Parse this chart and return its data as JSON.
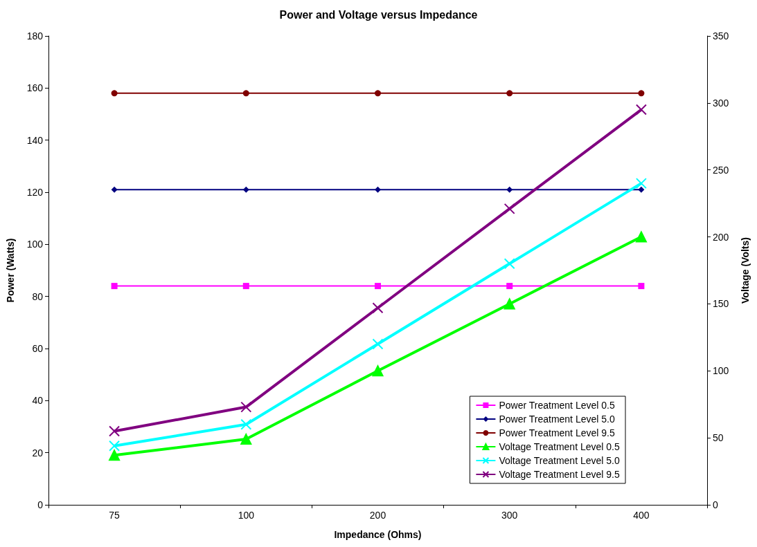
{
  "chart_data": {
    "type": "line",
    "title": "Power and Voltage versus Impedance",
    "xlabel": "Impedance (Ohms)",
    "ylabel": "Power (Watts)",
    "y2label": "Voltage (Volts)",
    "categories": [
      "75",
      "100",
      "200",
      "300",
      "400"
    ],
    "ylim": [
      0,
      180
    ],
    "yticks": [
      0,
      20,
      40,
      60,
      80,
      100,
      120,
      140,
      160,
      180
    ],
    "y2lim": [
      0,
      350
    ],
    "y2ticks": [
      0,
      50,
      100,
      150,
      200,
      250,
      300,
      350
    ],
    "grid": false,
    "legend": "bottom right",
    "line_style": "solid",
    "series": [
      {
        "name": "Power Treatment Level 0.5",
        "color": "#ff00ff",
        "marker": "square",
        "values": [
          84,
          84,
          84,
          84,
          84
        ]
      },
      {
        "name": "Power Treatment Level 5.0",
        "color": "#000080",
        "marker": "diamond",
        "values": [
          121,
          121,
          121,
          121,
          121
        ]
      },
      {
        "name": "Power Treatment Level 9.5",
        "color": "#800000",
        "marker": "circle",
        "values": [
          158,
          158,
          158,
          158,
          158
        ]
      },
      {
        "name": "Voltage Treatment Level 0.5",
        "color": "#00ff00",
        "marker": "triangle",
        "axis": "y2",
        "values": [
          37,
          49,
          100,
          150,
          200
        ]
      },
      {
        "name": "Voltage Treatment Level 5.0",
        "color": "#00ffff",
        "marker": "cross",
        "axis": "y2",
        "values": [
          44,
          60,
          120,
          180,
          240
        ]
      },
      {
        "name": "Voltage Treatment Level 9.5",
        "color": "#800080",
        "marker": "cross",
        "axis": "y2",
        "values": [
          55,
          73,
          147,
          221,
          295
        ]
      }
    ]
  }
}
